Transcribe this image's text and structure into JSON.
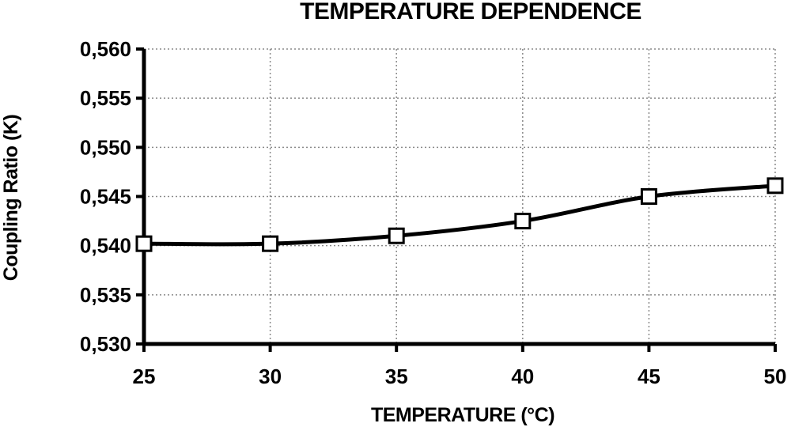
{
  "chart_data": {
    "type": "line",
    "title": "TEMPERATURE DEPENDENCE",
    "xlabel": "TEMPERATURE (°C)",
    "ylabel": "Coupling Ratio (K)",
    "x": [
      25,
      30,
      35,
      40,
      45,
      50
    ],
    "x_tick_labels": [
      "25",
      "30",
      "35",
      "40",
      "45",
      "50"
    ],
    "y_tick_labels": [
      "0,530",
      "0,535",
      "0,540",
      "0,545",
      "0,550",
      "0,555",
      "0,560"
    ],
    "y_ticks": [
      0.53,
      0.535,
      0.54,
      0.545,
      0.55,
      0.555,
      0.56
    ],
    "xlim": [
      25,
      50
    ],
    "ylim": [
      0.53,
      0.56
    ],
    "grid": true,
    "marker": "square",
    "series": [
      {
        "values": [
          0.5402,
          0.5402,
          0.541,
          0.5425,
          0.545,
          0.5461
        ]
      }
    ]
  }
}
